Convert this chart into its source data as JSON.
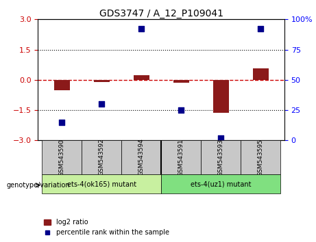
{
  "title": "GDS3747 / A_12_P109041",
  "samples": [
    "GSM543590",
    "GSM543592",
    "GSM543594",
    "GSM543591",
    "GSM543593",
    "GSM543595"
  ],
  "log2_ratio": [
    -0.52,
    -0.1,
    0.22,
    -0.14,
    -1.62,
    0.58
  ],
  "percentile_rank": [
    15,
    30,
    92,
    25,
    2,
    92
  ],
  "bar_color": "#8B1A1A",
  "dot_color": "#00008B",
  "left_ylim": [
    -3,
    3
  ],
  "left_yticks": [
    -3,
    -1.5,
    0,
    1.5,
    3
  ],
  "right_ylim": [
    0,
    100
  ],
  "right_yticks": [
    0,
    25,
    50,
    75,
    100
  ],
  "right_yticklabels": [
    "0",
    "25",
    "50",
    "75",
    "100%"
  ],
  "hline_y": 0,
  "hline_color": "#CC0000",
  "hline_style": "dashed",
  "dotted_lines": [
    -1.5,
    1.5
  ],
  "dotted_color": "black",
  "group1_label": "ets-4(ok165) mutant",
  "group2_label": "ets-4(uz1) mutant",
  "group1_indices": [
    0,
    1,
    2
  ],
  "group2_indices": [
    3,
    4,
    5
  ],
  "group1_color": "#c8f0a0",
  "group2_color": "#80e080",
  "sample_box_color": "#c8c8c8",
  "legend_bar_label": "log2 ratio",
  "legend_dot_label": "percentile rank within the sample",
  "genotype_label": "genotype/variation",
  "bar_width": 0.4,
  "dot_size": 40
}
